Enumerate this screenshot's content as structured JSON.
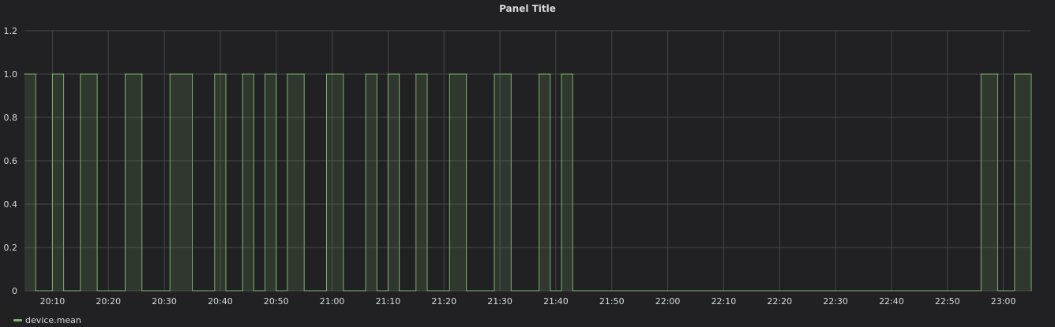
{
  "panel": {
    "title": "Panel Title"
  },
  "colors": {
    "background": "#212124",
    "grid": "#464649",
    "series": "#7eb26d",
    "text": "#d8d9da"
  },
  "chart_data": {
    "type": "area",
    "title": "Panel Title",
    "xlabel": "",
    "ylabel": "",
    "xlim": [
      "20:05",
      "23:05"
    ],
    "ylim": [
      0,
      1.2
    ],
    "yticks": [
      "0",
      "0.2",
      "0.4",
      "0.6",
      "0.8",
      "1.0",
      "1.2"
    ],
    "xticks": [
      "20:10",
      "20:20",
      "20:30",
      "20:40",
      "20:50",
      "21:00",
      "21:10",
      "21:20",
      "21:30",
      "21:40",
      "21:50",
      "22:00",
      "22:10",
      "22:20",
      "22:30",
      "22:40",
      "22:50",
      "23:00"
    ],
    "grid": true,
    "legend_position": "bottom-left",
    "series": [
      {
        "name": "device.mean",
        "color": "#7eb26d",
        "points": [
          [
            "20:05",
            1
          ],
          [
            "20:07",
            1
          ],
          [
            "20:07",
            0
          ],
          [
            "20:10",
            0
          ],
          [
            "20:10",
            1
          ],
          [
            "20:12",
            1
          ],
          [
            "20:12",
            0
          ],
          [
            "20:15",
            0
          ],
          [
            "20:15",
            1
          ],
          [
            "20:18",
            1
          ],
          [
            "20:18",
            0
          ],
          [
            "20:23",
            0
          ],
          [
            "20:23",
            1
          ],
          [
            "20:26",
            1
          ],
          [
            "20:26",
            0
          ],
          [
            "20:31",
            0
          ],
          [
            "20:31",
            1
          ],
          [
            "20:35",
            1
          ],
          [
            "20:35",
            0
          ],
          [
            "20:39",
            0
          ],
          [
            "20:39",
            1
          ],
          [
            "20:41",
            1
          ],
          [
            "20:41",
            0
          ],
          [
            "20:44",
            0
          ],
          [
            "20:44",
            1
          ],
          [
            "20:46",
            1
          ],
          [
            "20:46",
            0
          ],
          [
            "20:48",
            0
          ],
          [
            "20:48",
            1
          ],
          [
            "20:50",
            1
          ],
          [
            "20:50",
            0
          ],
          [
            "20:52",
            0
          ],
          [
            "20:52",
            1
          ],
          [
            "20:55",
            1
          ],
          [
            "20:55",
            0
          ],
          [
            "20:59",
            0
          ],
          [
            "20:59",
            1
          ],
          [
            "21:02",
            1
          ],
          [
            "21:02",
            0
          ],
          [
            "21:06",
            0
          ],
          [
            "21:06",
            1
          ],
          [
            "21:08",
            1
          ],
          [
            "21:08",
            0
          ],
          [
            "21:10",
            0
          ],
          [
            "21:10",
            1
          ],
          [
            "21:12",
            1
          ],
          [
            "21:12",
            0
          ],
          [
            "21:15",
            0
          ],
          [
            "21:15",
            1
          ],
          [
            "21:17",
            1
          ],
          [
            "21:17",
            0
          ],
          [
            "21:21",
            0
          ],
          [
            "21:21",
            1
          ],
          [
            "21:24",
            1
          ],
          [
            "21:24",
            0
          ],
          [
            "21:29",
            0
          ],
          [
            "21:29",
            1
          ],
          [
            "21:32",
            1
          ],
          [
            "21:32",
            0
          ],
          [
            "21:37",
            0
          ],
          [
            "21:37",
            1
          ],
          [
            "21:39",
            1
          ],
          [
            "21:39",
            0
          ],
          [
            "21:41",
            0
          ],
          [
            "21:41",
            1
          ],
          [
            "21:43",
            1
          ],
          [
            "21:43",
            0
          ],
          [
            "22:56",
            0
          ],
          [
            "22:56",
            1
          ],
          [
            "22:59",
            1
          ],
          [
            "22:59",
            0
          ],
          [
            "23:02",
            0
          ],
          [
            "23:02",
            1
          ],
          [
            "23:05",
            1
          ],
          [
            "23:05",
            0
          ]
        ]
      }
    ]
  }
}
